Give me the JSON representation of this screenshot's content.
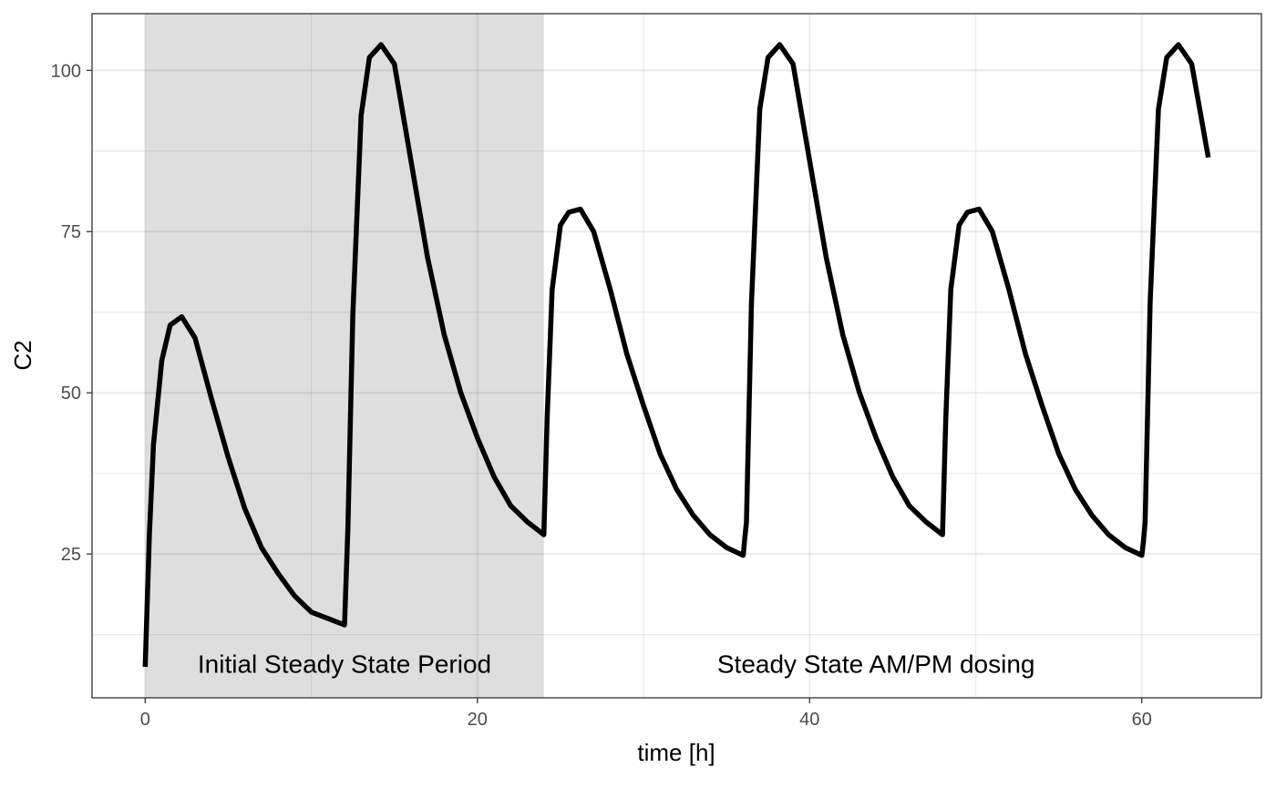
{
  "chart_data": {
    "type": "line",
    "xlabel": "time [h]",
    "ylabel": "C2",
    "xlim": [
      -3.2,
      67.2
    ],
    "ylim": [
      2.7,
      108.8
    ],
    "x_ticks": [
      0,
      20,
      40,
      60
    ],
    "x_tick_labels": [
      "0",
      "20",
      "40",
      "60"
    ],
    "y_ticks": [
      25,
      50,
      75,
      100
    ],
    "y_tick_labels": [
      "25",
      "50",
      "75",
      "100"
    ],
    "grid": true,
    "legend": "none",
    "shaded_region": {
      "x_start": 0,
      "x_end": 24,
      "color": "#dedede"
    },
    "annotations": [
      {
        "text": "Initial Steady State Period",
        "x": 12,
        "y": 8
      },
      {
        "text": "Steady State AM/PM dosing",
        "x": 44,
        "y": 8
      }
    ],
    "series": [
      {
        "color": "#000000",
        "x": [
          0,
          0.25,
          0.5,
          1,
          1.5,
          2.2,
          3,
          4,
          5,
          6,
          7,
          8,
          9,
          10,
          11,
          12,
          12.2,
          12.5,
          13,
          13.5,
          14.2,
          15,
          16,
          17,
          18,
          19,
          20,
          21,
          22,
          23,
          24,
          24.2,
          24.5,
          25,
          25.5,
          26.2,
          27,
          28,
          29,
          30,
          31,
          32,
          33,
          34,
          35,
          36,
          36.1,
          36.2,
          36.5,
          37,
          37.5,
          38.2,
          39,
          40,
          41,
          42,
          43,
          44,
          45,
          46,
          47,
          48,
          48.2,
          48.5,
          49,
          49.5,
          50.2,
          51,
          52,
          53,
          54,
          55,
          56,
          57,
          58,
          59,
          60,
          60.1,
          60.2,
          60.5,
          61,
          61.5,
          62.2,
          63,
          64
        ],
        "y": [
          7.5,
          28,
          42,
          55,
          60.5,
          61.8,
          58.5,
          49,
          40,
          32,
          26,
          22,
          18.5,
          16,
          15,
          14,
          29,
          62,
          93,
          102,
          104,
          101,
          86,
          71,
          59,
          50,
          43,
          37,
          32.5,
          30,
          28,
          46,
          66,
          76,
          78,
          78.5,
          75,
          66,
          56,
          48,
          40.5,
          35,
          31,
          28,
          26,
          24.8,
          27.5,
          30,
          64,
          94,
          102,
          104,
          101,
          86,
          71,
          59,
          50,
          43,
          37,
          32.5,
          30,
          28,
          46,
          66,
          76,
          78,
          78.5,
          75,
          66,
          56,
          48,
          40.5,
          35,
          31,
          28,
          26,
          24.8,
          27,
          30,
          64,
          94,
          102,
          104,
          101,
          86.5
        ]
      }
    ]
  }
}
